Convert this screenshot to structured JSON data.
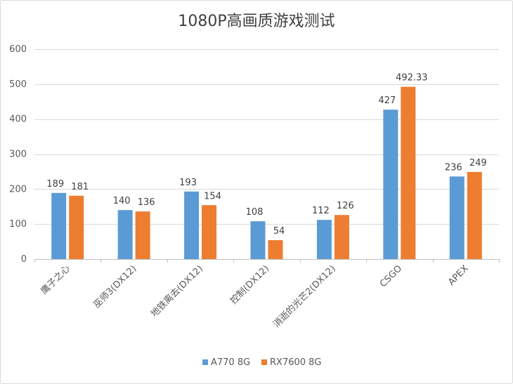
{
  "chart_data": {
    "type": "bar",
    "title": "1080P高画质游戏测试",
    "categories": [
      "鹰子之心",
      "巫师3(DX12)",
      "地铁离去(DX12)",
      "控制(DX12)",
      "消逝的光芒2(DX12)",
      "CSGO",
      "APEX"
    ],
    "series": [
      {
        "name": "A770 8G",
        "color": "#5b9bd5",
        "values": [
          189,
          140,
          193,
          108,
          112,
          427,
          236
        ],
        "labels": [
          "189",
          "140",
          "193",
          "108",
          "112",
          "427",
          "236"
        ]
      },
      {
        "name": "RX7600 8G",
        "color": "#ed7d31",
        "values": [
          181,
          136,
          154,
          54,
          126,
          492.33,
          249
        ],
        "labels": [
          "181",
          "136",
          "154",
          "54",
          "126",
          "492.33",
          "249"
        ]
      }
    ],
    "ylim": [
      0,
      600
    ],
    "yticks": [
      0,
      100,
      200,
      300,
      400,
      500,
      600
    ],
    "ytick_labels": [
      "0",
      "100",
      "200",
      "300",
      "400",
      "500",
      "600"
    ],
    "grid": true,
    "legend": "bottom",
    "colors": {
      "gridline": "#d9d9d9",
      "axis": "#bfbfbf",
      "text": "#595959"
    }
  }
}
